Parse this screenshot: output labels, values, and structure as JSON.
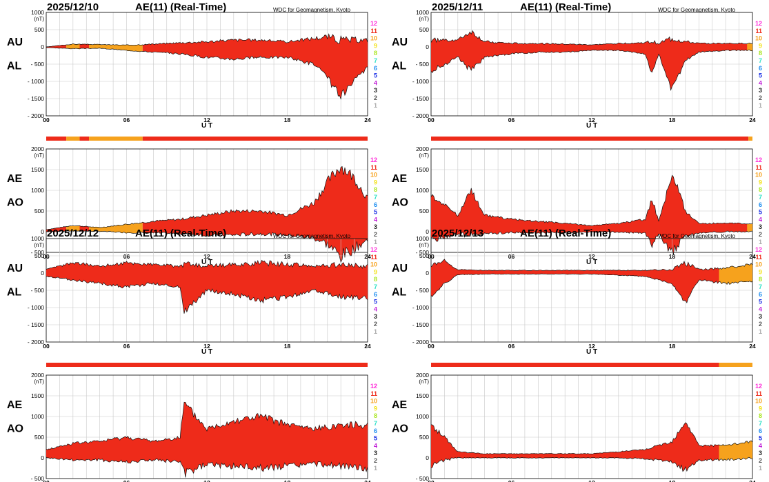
{
  "colors": {
    "12": "#ff2bd8",
    "11": "#ee2b1a",
    "10": "#f6a21d",
    "9": "#f3e31d",
    "8": "#a8e61d",
    "7": "#2be0c6",
    "6": "#1d8ef0",
    "5": "#1d32e6",
    "4": "#c01dd6",
    "3": "#222222",
    "2": "#555555",
    "1": "#aaaaaa",
    "main_fill": "#ee2b1a",
    "alt_fill": "#f6a21d",
    "grid": "#c8c8c8"
  },
  "level_labels": [
    "12",
    "11",
    "10",
    "9",
    "8",
    "7",
    "6",
    "5",
    "4",
    "3",
    "2",
    "1"
  ],
  "x_ticks": [
    "00",
    "06",
    "12",
    "18",
    "24"
  ],
  "x_label": "U T",
  "units": "(nT)",
  "days": [
    {
      "date": "2025/12/10",
      "title": "AE(11) (Real-Time)",
      "source": "WDC for Geomagnetism, Kyoto",
      "top_labels": [
        "AU",
        "AL"
      ],
      "bottom_labels": [
        "AE",
        "AO"
      ],
      "top_yticks": [
        "1000",
        "500",
        "0",
        "- 500",
        "- 1000",
        "- 1500",
        "- 2000"
      ],
      "bottom_yticks": [
        "2000",
        "1500",
        "1000",
        "500",
        "0",
        "- 500"
      ],
      "quality_bar": [
        {
          "from": 0,
          "to": 1.5,
          "level": "11"
        },
        {
          "from": 1.5,
          "to": 2.5,
          "level": "10"
        },
        {
          "from": 2.5,
          "to": 3.2,
          "level": "11"
        },
        {
          "from": 3.2,
          "to": 7.2,
          "level": "10"
        },
        {
          "from": 7.2,
          "to": 24,
          "level": "11"
        }
      ]
    },
    {
      "date": "2025/12/11",
      "title": "AE(11) (Real-Time)",
      "source": "WDC for Geomagnetism, Kyoto",
      "top_labels": [
        "AU",
        "AL"
      ],
      "bottom_labels": [
        "AE",
        "AO"
      ],
      "top_yticks": [
        "1000",
        "500",
        "0",
        "- 500",
        "- 1000",
        "- 1500",
        "- 2000"
      ],
      "bottom_yticks": [
        "2000",
        "1500",
        "1000",
        "500",
        "0",
        "- 500"
      ],
      "quality_bar": [
        {
          "from": 0,
          "to": 23.7,
          "level": "11"
        },
        {
          "from": 23.7,
          "to": 24,
          "level": "10"
        }
      ]
    },
    {
      "date": "2025/12/12",
      "title": "AE(11) (Real-Time)",
      "source": "WDC for Geomagnetism, Kyoto",
      "top_labels": [
        "AU",
        "AL"
      ],
      "bottom_labels": [
        "AE",
        "AO"
      ],
      "top_yticks": [
        "1000",
        "500",
        "0",
        "- 500",
        "- 1000",
        "- 1500",
        "- 2000"
      ],
      "bottom_yticks": [
        "2000",
        "1500",
        "1000",
        "500",
        "0",
        "- 500"
      ],
      "quality_bar": [
        {
          "from": 0,
          "to": 24,
          "level": "11"
        }
      ]
    },
    {
      "date": "2025/12/13",
      "title": "AE(11) (Real-Time)",
      "source": "WDC for Geomagnetism, Kyoto",
      "top_labels": [
        "AU",
        "AL"
      ],
      "bottom_labels": [
        "AE",
        "AO"
      ],
      "top_yticks": [
        "1000",
        "500",
        "0",
        "- 500",
        "- 1000",
        "- 1500",
        "- 2000"
      ],
      "bottom_yticks": [
        "2000",
        "1500",
        "1000",
        "500",
        "0",
        "- 500"
      ],
      "quality_bar": [
        {
          "from": 0,
          "to": 21.5,
          "level": "11"
        },
        {
          "from": 21.5,
          "to": 24,
          "level": "10"
        }
      ]
    }
  ],
  "chart_data": [
    {
      "type": "area",
      "date": "2025/12/10",
      "panel": "AU/AL",
      "x": [
        0,
        2,
        4,
        6,
        8,
        10,
        12,
        14,
        16,
        18,
        20,
        21,
        22,
        23,
        24
      ],
      "series": [
        {
          "name": "AU",
          "values": [
            0,
            80,
            70,
            50,
            80,
            120,
            150,
            200,
            200,
            150,
            250,
            300,
            200,
            200,
            200
          ]
        },
        {
          "name": "AL",
          "values": [
            -20,
            -50,
            -40,
            -100,
            -150,
            -200,
            -300,
            -350,
            -300,
            -300,
            -500,
            -900,
            -1450,
            -1000,
            -600
          ]
        }
      ],
      "ylim": [
        -2000,
        1000
      ],
      "xlim": [
        0,
        24
      ]
    },
    {
      "type": "area",
      "date": "2025/12/10",
      "panel": "AE/AO",
      "x": [
        0,
        2,
        4,
        6,
        8,
        10,
        12,
        14,
        16,
        18,
        20,
        21,
        22,
        23,
        24
      ],
      "series": [
        {
          "name": "AE",
          "values": [
            50,
            150,
            100,
            180,
            250,
            300,
            400,
            500,
            500,
            400,
            700,
            1200,
            1600,
            1300,
            800
          ]
        },
        {
          "name": "AO",
          "values": [
            0,
            20,
            10,
            -20,
            -30,
            -50,
            -80,
            -80,
            -50,
            -80,
            -150,
            -300,
            -600,
            -400,
            -200
          ]
        }
      ],
      "ylim": [
        -500,
        2000
      ],
      "xlim": [
        0,
        24
      ]
    },
    {
      "type": "area",
      "date": "2025/12/11",
      "panel": "AU/AL",
      "x": [
        0,
        2,
        3,
        4,
        6,
        8,
        10,
        12,
        14,
        16,
        16.5,
        17,
        18,
        19,
        20,
        22,
        24
      ],
      "series": [
        {
          "name": "AU",
          "values": [
            200,
            200,
            450,
            150,
            100,
            100,
            80,
            60,
            100,
            120,
            150,
            100,
            250,
            150,
            100,
            100,
            100
          ]
        },
        {
          "name": "AL",
          "values": [
            -700,
            -300,
            -700,
            -300,
            -200,
            -150,
            -150,
            -100,
            -100,
            -200,
            -800,
            -200,
            -1250,
            -400,
            -150,
            -100,
            -100
          ]
        }
      ],
      "ylim": [
        -2000,
        1000
      ],
      "xlim": [
        0,
        24
      ]
    },
    {
      "type": "area",
      "date": "2025/12/11",
      "panel": "AE/AO",
      "x": [
        0,
        2,
        3,
        4,
        6,
        8,
        10,
        12,
        14,
        16,
        16.5,
        17,
        18,
        19,
        20,
        22,
        24
      ],
      "series": [
        {
          "name": "AE",
          "values": [
            900,
            400,
            1000,
            400,
            300,
            250,
            200,
            150,
            200,
            300,
            800,
            250,
            1400,
            500,
            200,
            200,
            200
          ]
        },
        {
          "name": "AO",
          "values": [
            -200,
            -50,
            -100,
            -50,
            -20,
            -20,
            -20,
            -10,
            -10,
            -40,
            -300,
            -50,
            -500,
            -100,
            -30,
            0,
            0
          ]
        }
      ],
      "ylim": [
        -500,
        2000
      ],
      "xlim": [
        0,
        24
      ]
    },
    {
      "type": "area",
      "date": "2025/12/12",
      "panel": "AU/AL",
      "x": [
        0,
        2,
        4,
        6,
        8,
        10,
        10.3,
        12,
        14,
        16,
        18,
        20,
        22,
        24
      ],
      "series": [
        {
          "name": "AU",
          "values": [
            100,
            300,
            200,
            300,
            250,
            200,
            250,
            200,
            250,
            300,
            250,
            200,
            250,
            200
          ]
        },
        {
          "name": "AL",
          "values": [
            -100,
            -200,
            -300,
            -400,
            -300,
            -400,
            -1100,
            -500,
            -600,
            -800,
            -700,
            -500,
            -700,
            -700
          ]
        }
      ],
      "ylim": [
        -2000,
        1000
      ],
      "xlim": [
        0,
        24
      ]
    },
    {
      "type": "area",
      "date": "2025/12/12",
      "panel": "AE/AO",
      "x": [
        0,
        2,
        4,
        6,
        8,
        10,
        10.3,
        12,
        14,
        16,
        18,
        20,
        22,
        24
      ],
      "series": [
        {
          "name": "AE",
          "values": [
            200,
            350,
            400,
            500,
            400,
            500,
            1300,
            700,
            900,
            1000,
            800,
            700,
            800,
            800
          ]
        },
        {
          "name": "AO",
          "values": [
            0,
            -50,
            -50,
            -100,
            -50,
            -100,
            -400,
            -150,
            -200,
            -250,
            -200,
            -150,
            -200,
            -250
          ]
        }
      ],
      "ylim": [
        -500,
        2000
      ],
      "xlim": [
        0,
        24
      ]
    },
    {
      "type": "area",
      "date": "2025/12/13",
      "panel": "AU/AL",
      "x": [
        0,
        1,
        2,
        4,
        6,
        8,
        10,
        12,
        14,
        16,
        18,
        19,
        20,
        22,
        24
      ],
      "series": [
        {
          "name": "AU",
          "values": [
            200,
            350,
            100,
            80,
            80,
            80,
            80,
            80,
            80,
            80,
            100,
            300,
            100,
            150,
            250
          ]
        },
        {
          "name": "AL",
          "values": [
            -700,
            -300,
            -50,
            -30,
            -30,
            -30,
            -30,
            -30,
            -60,
            -100,
            -300,
            -850,
            -200,
            -300,
            -250
          ]
        }
      ],
      "ylim": [
        -2000,
        1000
      ],
      "xlim": [
        0,
        24
      ]
    },
    {
      "type": "area",
      "date": "2025/12/13",
      "panel": "AE/AO",
      "x": [
        0,
        1,
        2,
        4,
        6,
        8,
        10,
        12,
        14,
        16,
        18,
        19,
        20,
        22,
        24
      ],
      "series": [
        {
          "name": "AE",
          "values": [
            800,
            500,
            150,
            100,
            100,
            100,
            100,
            100,
            150,
            200,
            400,
            900,
            300,
            300,
            400
          ]
        },
        {
          "name": "AO",
          "values": [
            -200,
            -50,
            0,
            0,
            0,
            0,
            0,
            0,
            0,
            -20,
            -100,
            -300,
            -50,
            -50,
            0
          ]
        }
      ],
      "ylim": [
        -500,
        2000
      ],
      "xlim": [
        0,
        24
      ]
    }
  ]
}
